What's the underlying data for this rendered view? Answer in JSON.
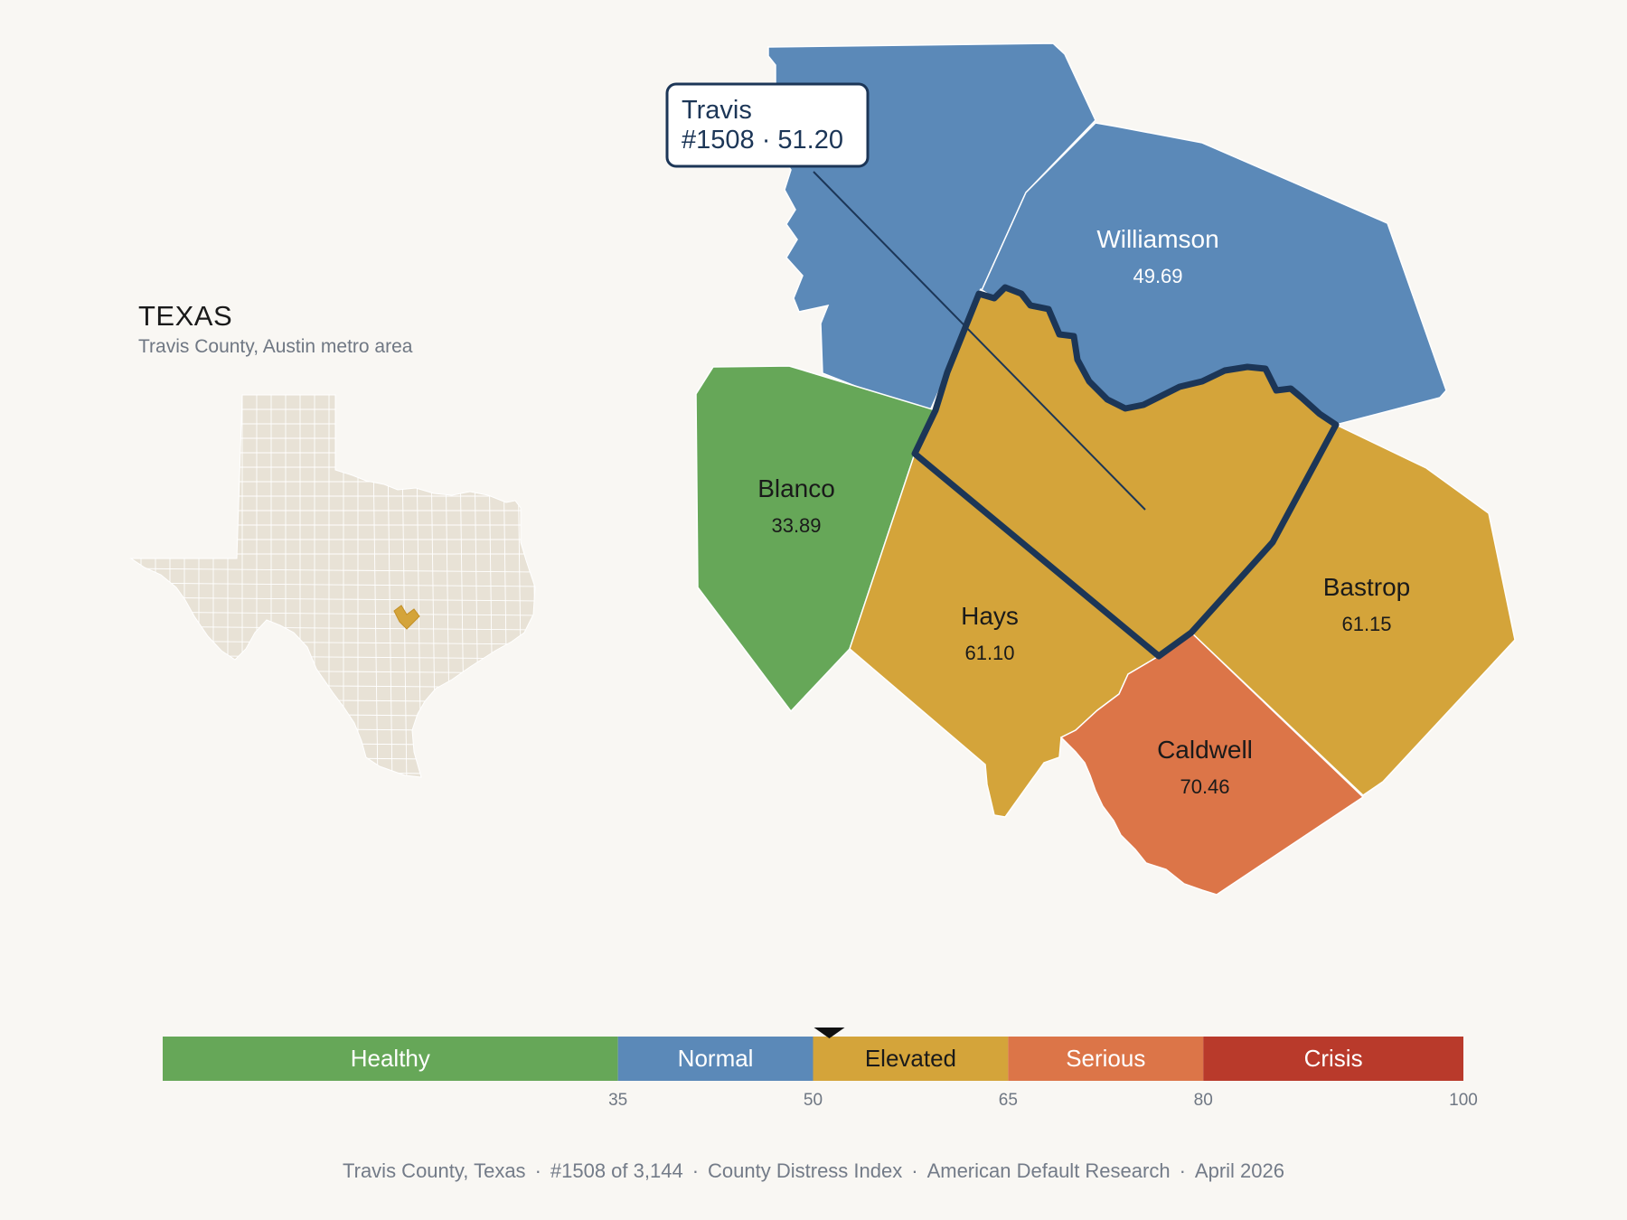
{
  "inset": {
    "title": "TEXAS",
    "subtitle": "Travis County, Austin metro area",
    "state_fill": "#e8e2d6",
    "highlight_fill": "#d4a43a"
  },
  "tooltip": {
    "name": "Travis",
    "detail": "#1508 · 51.20"
  },
  "counties": [
    {
      "id": "travis",
      "name": "Travis",
      "value": "51.20",
      "category": "Elevated",
      "selected": true,
      "label": false
    },
    {
      "id": "williamson",
      "name": "Williamson",
      "value": "49.69",
      "category": "Normal",
      "label": true
    },
    {
      "id": "burnet",
      "name": "",
      "value": "",
      "category": "Normal",
      "label": false
    },
    {
      "id": "blanco",
      "name": "Blanco",
      "value": "33.89",
      "category": "Healthy",
      "label": true
    },
    {
      "id": "hays",
      "name": "Hays",
      "value": "61.10",
      "category": "Elevated",
      "label": true
    },
    {
      "id": "bastrop",
      "name": "Bastrop",
      "value": "61.15",
      "category": "Elevated",
      "label": true
    },
    {
      "id": "caldwell",
      "name": "Caldwell",
      "value": "70.46",
      "category": "Serious",
      "label": true
    }
  ],
  "legend": {
    "segments": [
      {
        "label": "Healthy",
        "from": 0,
        "to": 35,
        "color": "#66a758"
      },
      {
        "label": "Normal",
        "from": 35,
        "to": 50,
        "color": "#5b89b8"
      },
      {
        "label": "Elevated",
        "from": 50,
        "to": 65,
        "color": "#d4a43a"
      },
      {
        "label": "Serious",
        "from": 65,
        "to": 80,
        "color": "#dc7548"
      },
      {
        "label": "Crisis",
        "from": 80,
        "to": 100,
        "color": "#b93a2b"
      }
    ],
    "ticks": [
      "35",
      "50",
      "65",
      "80",
      "100"
    ],
    "marker_value": 51.2
  },
  "colors": {
    "selected_outline": "#1c3657",
    "label_dark": "#1a1a1a",
    "label_light": "#ffffff"
  },
  "footer": {
    "items": [
      "Travis County, Texas",
      "#1508 of 3,144",
      "County Distress Index",
      "American Default Research",
      "April 2026"
    ]
  }
}
